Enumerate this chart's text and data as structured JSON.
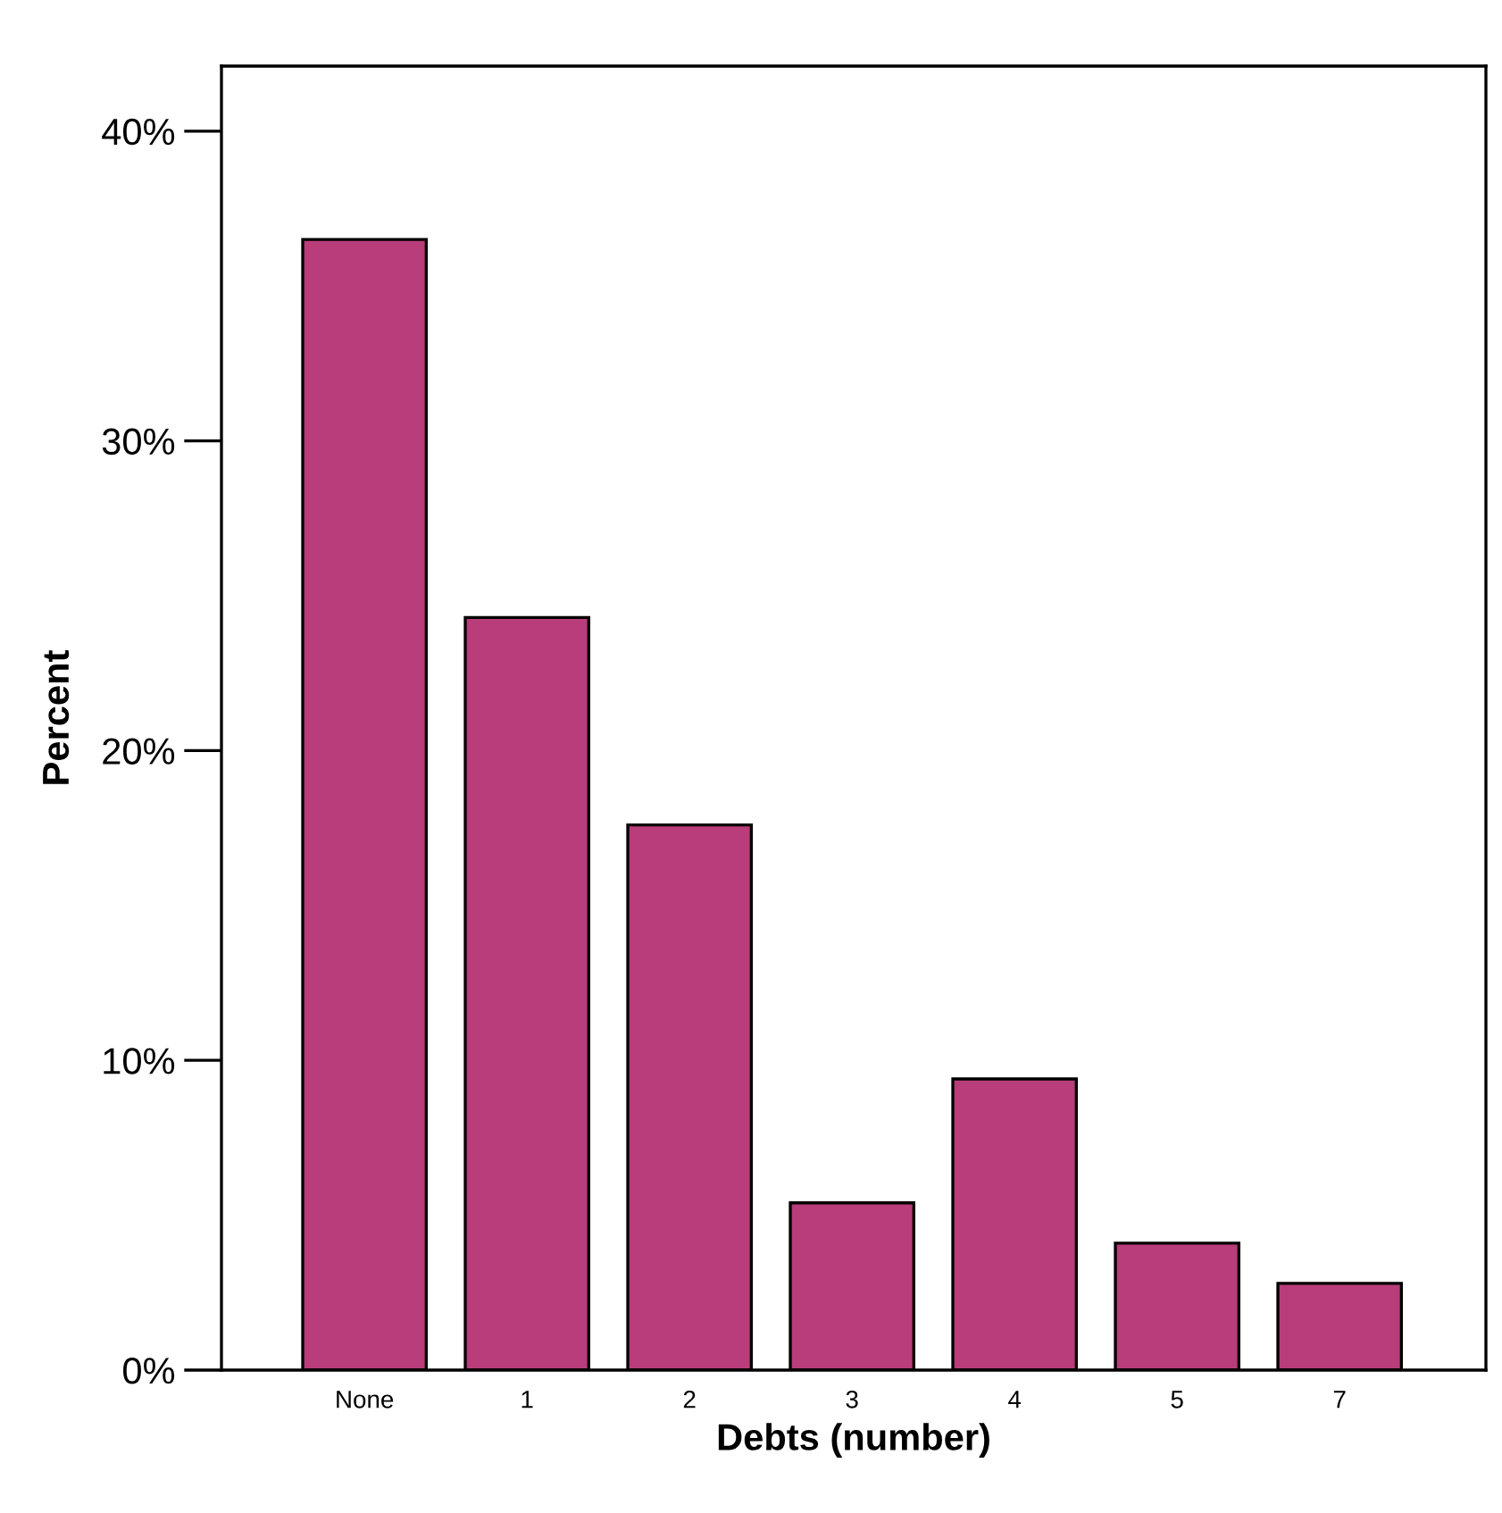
{
  "chart_data": {
    "type": "bar",
    "xlabel": "Debts (number)",
    "ylabel": "Percent",
    "categories": [
      "None",
      "1",
      "2",
      "3",
      "4",
      "5",
      "7"
    ],
    "values": [
      36.5,
      24.3,
      17.6,
      5.4,
      9.4,
      4.1,
      2.8
    ],
    "color": "#b83d7a",
    "ylim": [
      0,
      42.1
    ],
    "yticks": [
      {
        "value": 0,
        "label": "0%"
      },
      {
        "value": 10,
        "label": "10%"
      },
      {
        "value": 20,
        "label": "20%"
      },
      {
        "value": 30,
        "label": "30%"
      },
      {
        "value": 40,
        "label": "40%"
      }
    ],
    "grid": false
  }
}
